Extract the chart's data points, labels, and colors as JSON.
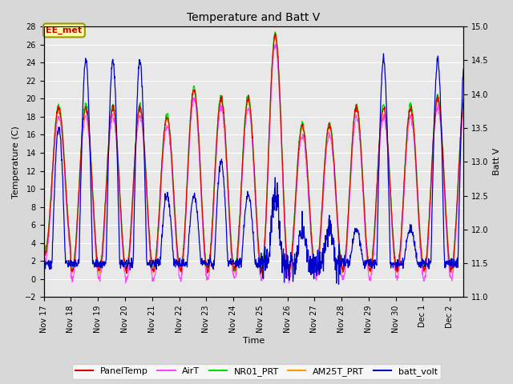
{
  "title": "Temperature and Batt V",
  "xlabel": "Time",
  "ylabel_left": "Temperature (C)",
  "ylabel_right": "Batt V",
  "ylim_left": [
    -2,
    28
  ],
  "ylim_right": [
    11.0,
    15.0
  ],
  "yticks_left": [
    -2,
    0,
    2,
    4,
    6,
    8,
    10,
    12,
    14,
    16,
    18,
    20,
    22,
    24,
    26,
    28
  ],
  "yticks_right": [
    11.0,
    11.5,
    12.0,
    12.5,
    13.0,
    13.5,
    14.0,
    14.5,
    15.0
  ],
  "xlim": [
    0,
    15.5
  ],
  "xtick_labels": [
    "Nov 17",
    "Nov 18",
    "Nov 19",
    "Nov 20",
    "Nov 21",
    "Nov 22",
    "Nov 23",
    "Nov 24",
    "Nov 25",
    "Nov 26",
    "Nov 27",
    "Nov 28",
    "Nov 29",
    "Nov 30",
    "Dec 1",
    "Dec 2"
  ],
  "xtick_positions": [
    0,
    1,
    2,
    3,
    4,
    5,
    6,
    7,
    8,
    9,
    10,
    11,
    12,
    13,
    14,
    15
  ],
  "annotation_text": "EE_met",
  "series_colors": {
    "PanelTemp": "#dd0000",
    "AirT": "#ff44ff",
    "NR01_PRT": "#00dd00",
    "AM25T_PRT": "#ff9900",
    "batt_volt": "#0000cc"
  },
  "legend_entries": [
    "PanelTemp",
    "AirT",
    "NR01_PRT",
    "AM25T_PRT",
    "batt_volt"
  ],
  "legend_colors": [
    "#dd0000",
    "#ff44ff",
    "#00dd00",
    "#ff9900",
    "#0000cc"
  ],
  "fig_facecolor": "#d8d8d8",
  "ax_facecolor": "#e8e8e8",
  "grid_color": "#ffffff",
  "title_fontsize": 10,
  "label_fontsize": 8,
  "tick_fontsize": 7,
  "legend_fontsize": 8
}
